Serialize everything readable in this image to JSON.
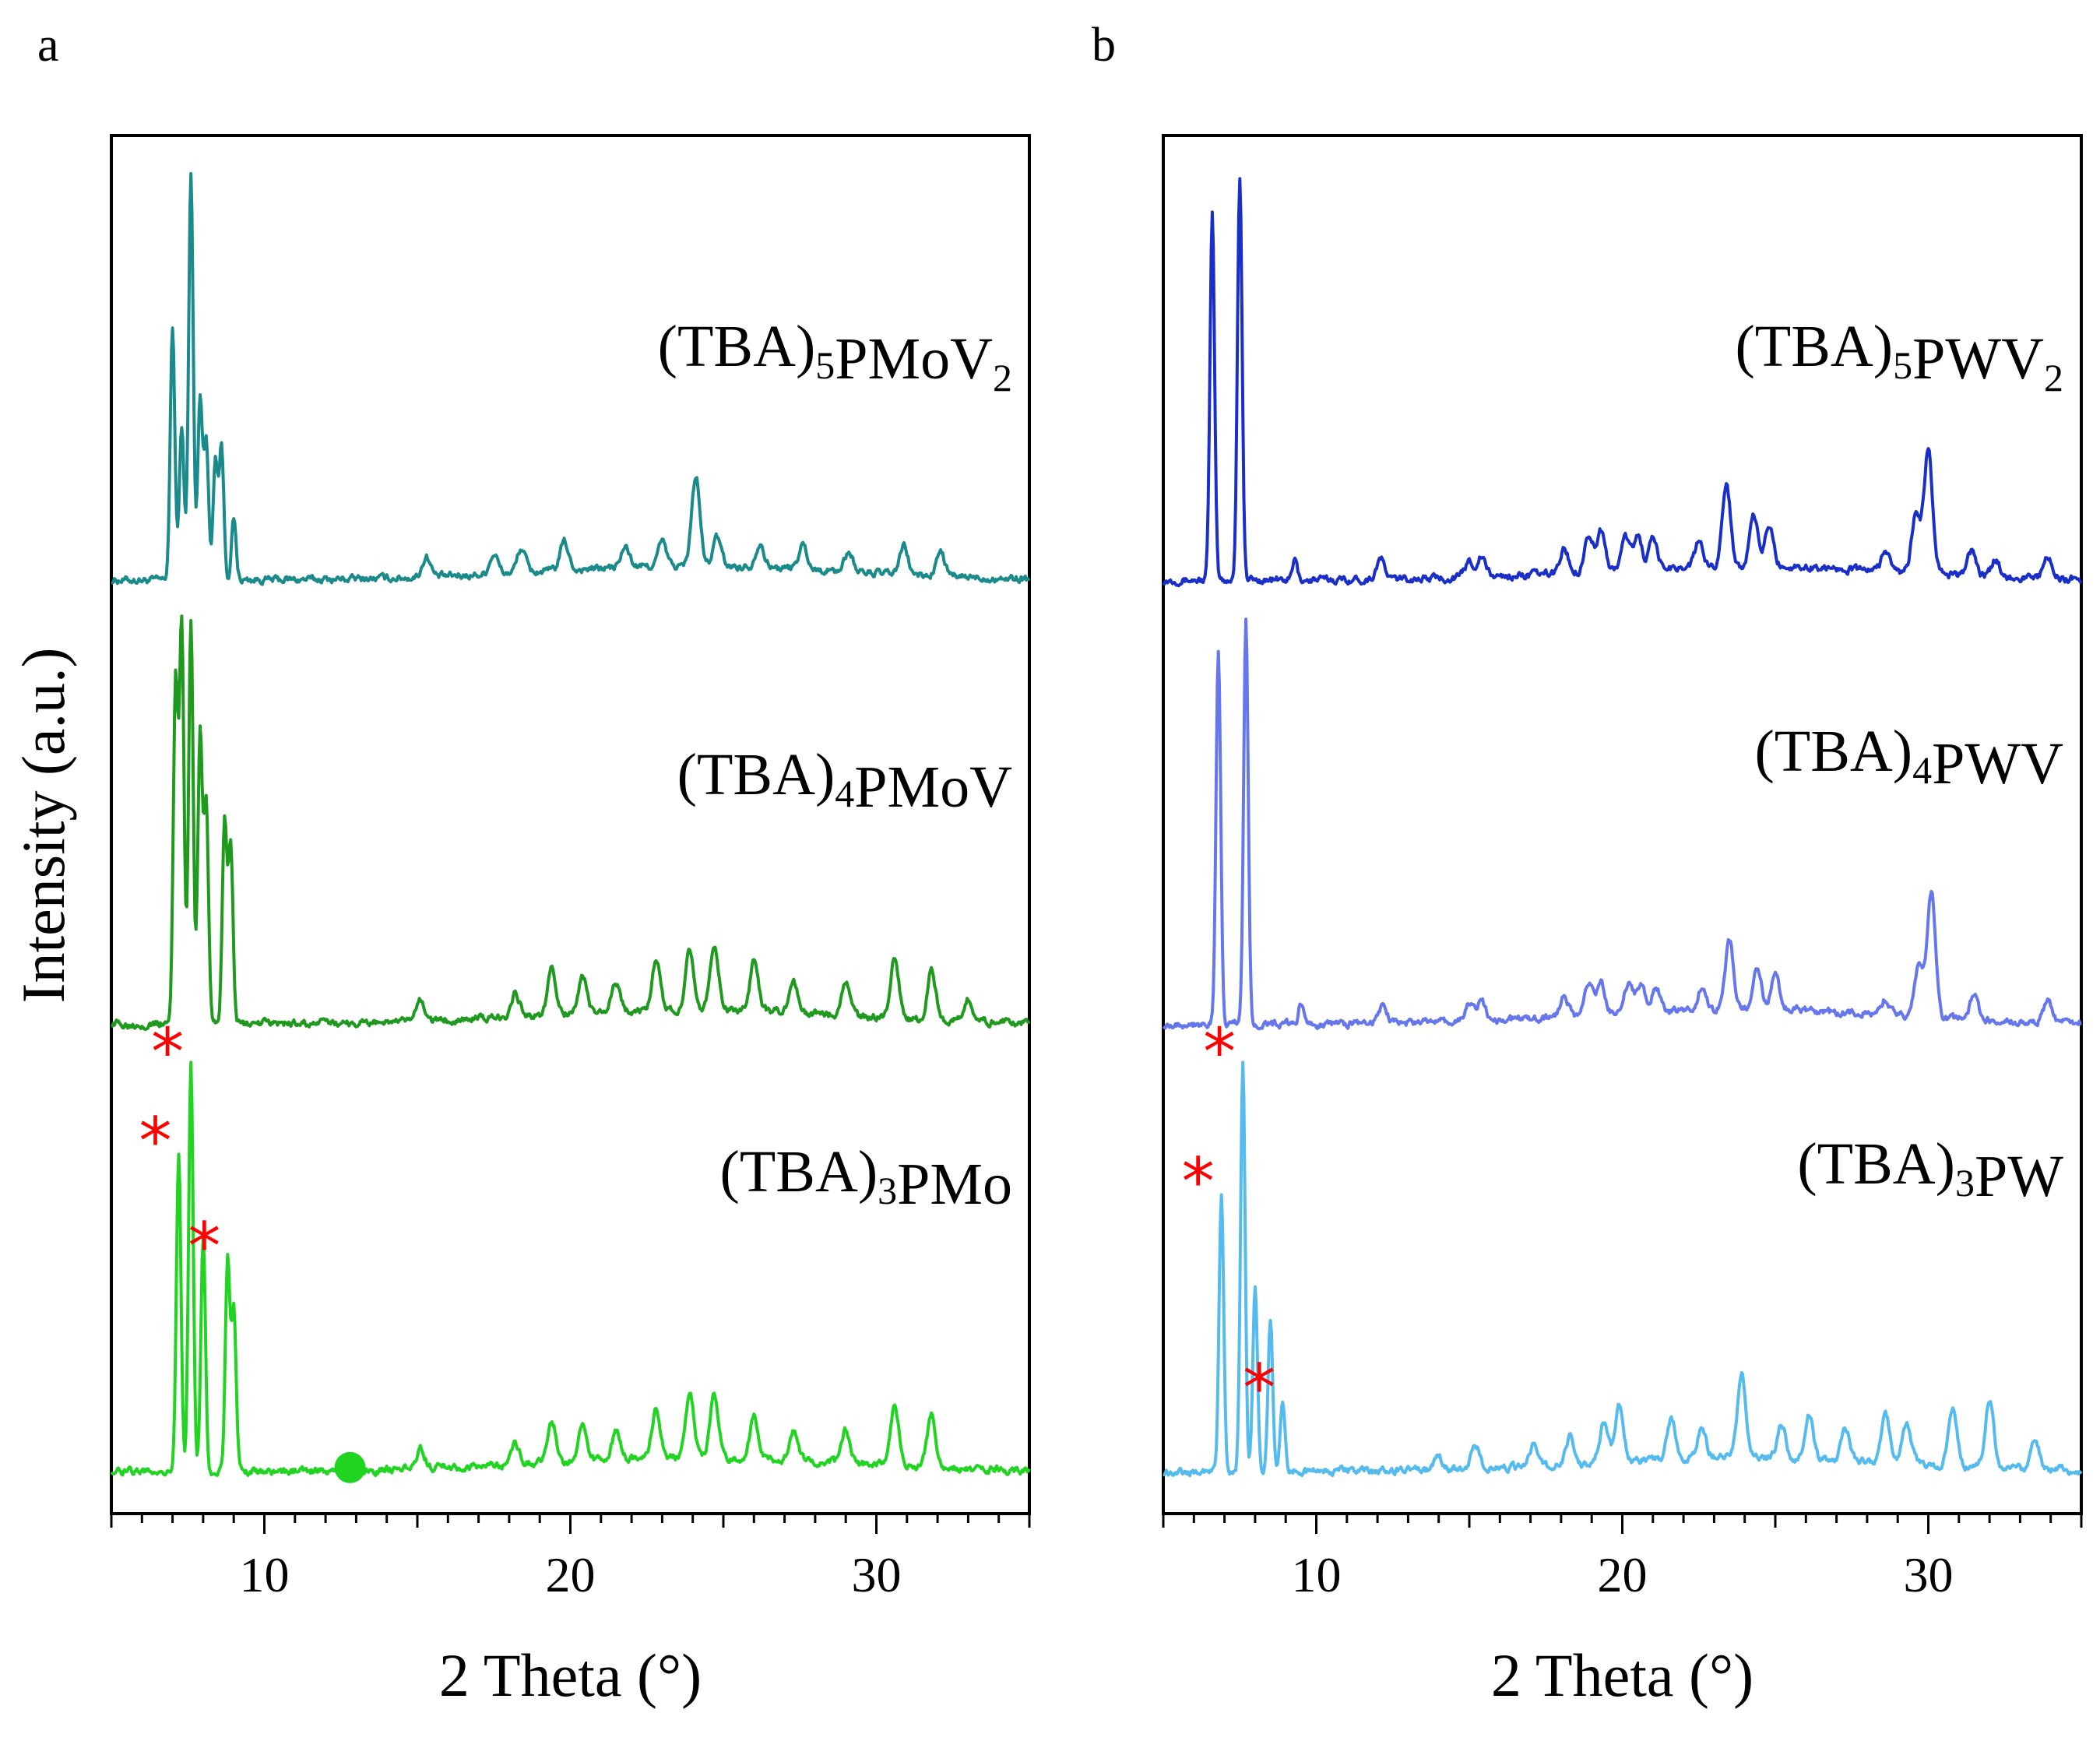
{
  "chart_data": [
    {
      "type": "line",
      "panel": "a",
      "xlabel": "2 Theta (°)",
      "ylabel": "Intensity (a.u.)",
      "xlim": [
        5,
        35
      ],
      "xticks": [
        10,
        20,
        30
      ],
      "xtick_labels": [
        "10",
        "20",
        "30"
      ],
      "series": [
        {
          "name": "(TBA)5PMoV2",
          "label_main": "(TBA)",
          "label_sub1": "5",
          "label_mid": "PMoV",
          "label_sub2": "2",
          "color": "#1a8a8a",
          "peaks": [
            [
              7.0,
              0.62
            ],
            [
              7.3,
              0.38
            ],
            [
              7.6,
              1.0
            ],
            [
              7.9,
              0.45
            ],
            [
              8.1,
              0.35
            ],
            [
              8.4,
              0.3
            ],
            [
              8.6,
              0.33
            ],
            [
              9.0,
              0.15
            ],
            [
              15.3,
              0.05
            ],
            [
              17.5,
              0.05
            ],
            [
              18.4,
              0.06
            ],
            [
              19.8,
              0.07
            ],
            [
              21.8,
              0.05
            ],
            [
              23.0,
              0.06
            ],
            [
              24.1,
              0.22
            ],
            [
              24.8,
              0.07
            ],
            [
              26.2,
              0.06
            ],
            [
              27.6,
              0.06
            ],
            [
              29.1,
              0.05
            ],
            [
              30.9,
              0.07
            ],
            [
              32.1,
              0.06
            ]
          ],
          "annotations": []
        },
        {
          "name": "(TBA)4PMoV",
          "label_main": "(TBA)",
          "label_sub1": "4",
          "label_mid": "PMoV",
          "label_sub2": "",
          "color": "#1f9a1f",
          "peaks": [
            [
              7.1,
              0.85
            ],
            [
              7.3,
              0.98
            ],
            [
              7.6,
              1.0
            ],
            [
              7.9,
              0.72
            ],
            [
              8.1,
              0.55
            ],
            [
              8.7,
              0.5
            ],
            [
              8.9,
              0.45
            ],
            [
              15.1,
              0.05
            ],
            [
              18.2,
              0.06
            ],
            [
              19.4,
              0.11
            ],
            [
              20.4,
              0.09
            ],
            [
              21.5,
              0.07
            ],
            [
              22.8,
              0.12
            ],
            [
              23.9,
              0.15
            ],
            [
              24.7,
              0.15
            ],
            [
              26.0,
              0.12
            ],
            [
              27.3,
              0.07
            ],
            [
              29.0,
              0.09
            ],
            [
              30.6,
              0.15
            ],
            [
              31.8,
              0.12
            ],
            [
              33.0,
              0.06
            ]
          ],
          "annotations": []
        },
        {
          "name": "(TBA)3PMo",
          "label_main": "(TBA)",
          "label_sub1": "3",
          "label_mid": "PMo",
          "label_sub2": "",
          "color": "#22d422",
          "peaks": [
            [
              7.2,
              0.78
            ],
            [
              7.6,
              1.0
            ],
            [
              8.0,
              0.58
            ],
            [
              8.8,
              0.52
            ],
            [
              9.0,
              0.4
            ],
            [
              15.1,
              0.05
            ],
            [
              18.2,
              0.05
            ],
            [
              19.4,
              0.1
            ],
            [
              20.4,
              0.08
            ],
            [
              21.5,
              0.07
            ],
            [
              22.8,
              0.12
            ],
            [
              23.9,
              0.16
            ],
            [
              24.7,
              0.16
            ],
            [
              26.0,
              0.11
            ],
            [
              27.3,
              0.07
            ],
            [
              29.0,
              0.08
            ],
            [
              30.6,
              0.14
            ],
            [
              31.8,
              0.13
            ]
          ],
          "annotations": [
            {
              "x": 7.2,
              "text": "*"
            },
            {
              "x": 7.6,
              "text": "*"
            },
            {
              "x": 8.8,
              "text": "*"
            }
          ],
          "marker_x": 12.8
        }
      ]
    },
    {
      "type": "line",
      "panel": "b",
      "xlabel": "2 Theta (°)",
      "xlim": [
        5,
        35
      ],
      "xticks": [
        10,
        20,
        30
      ],
      "xtick_labels": [
        "10",
        "20",
        "30"
      ],
      "series": [
        {
          "name": "(TBA)5PWV2",
          "label_main": "(TBA)",
          "label_sub1": "5",
          "label_mid": "PWV",
          "label_sub2": "2",
          "color": "#1a2ec8",
          "peaks": [
            [
              6.6,
              0.9
            ],
            [
              7.5,
              1.0
            ],
            [
              9.3,
              0.05
            ],
            [
              12.1,
              0.05
            ],
            [
              15.0,
              0.04
            ],
            [
              15.4,
              0.05
            ],
            [
              18.1,
              0.06
            ],
            [
              18.9,
              0.09
            ],
            [
              19.3,
              0.1
            ],
            [
              20.1,
              0.08
            ],
            [
              20.5,
              0.08
            ],
            [
              21.0,
              0.07
            ],
            [
              22.5,
              0.06
            ],
            [
              23.4,
              0.2
            ],
            [
              24.3,
              0.12
            ],
            [
              24.8,
              0.1
            ],
            [
              28.6,
              0.05
            ],
            [
              29.6,
              0.15
            ],
            [
              30.0,
              0.31
            ],
            [
              31.4,
              0.06
            ],
            [
              32.2,
              0.04
            ],
            [
              33.9,
              0.05
            ]
          ],
          "annotations": []
        },
        {
          "name": "(TBA)4PWV",
          "label_main": "(TBA)",
          "label_sub1": "4",
          "label_mid": "PWV",
          "label_sub2": "",
          "color": "#6677ee",
          "peaks": [
            [
              6.8,
              0.92
            ],
            [
              7.7,
              1.0
            ],
            [
              9.5,
              0.05
            ],
            [
              12.2,
              0.04
            ],
            [
              15.0,
              0.04
            ],
            [
              15.4,
              0.05
            ],
            [
              18.1,
              0.05
            ],
            [
              18.9,
              0.08
            ],
            [
              19.3,
              0.08
            ],
            [
              20.2,
              0.07
            ],
            [
              20.6,
              0.07
            ],
            [
              21.1,
              0.06
            ],
            [
              22.6,
              0.06
            ],
            [
              23.5,
              0.17
            ],
            [
              24.4,
              0.11
            ],
            [
              25.0,
              0.09
            ],
            [
              28.6,
              0.04
            ],
            [
              29.7,
              0.13
            ],
            [
              30.1,
              0.31
            ],
            [
              31.5,
              0.06
            ],
            [
              33.9,
              0.05
            ]
          ],
          "annotations": []
        },
        {
          "name": "(TBA)3PW",
          "label_main": "(TBA)",
          "label_sub1": "3",
          "label_mid": "PW",
          "label_sub2": "",
          "color": "#55bbee",
          "peaks": [
            [
              6.9,
              0.68
            ],
            [
              7.6,
              1.0
            ],
            [
              8.0,
              0.45
            ],
            [
              8.5,
              0.38
            ],
            [
              8.9,
              0.17
            ],
            [
              14.0,
              0.03
            ],
            [
              15.2,
              0.06
            ],
            [
              17.1,
              0.05
            ],
            [
              18.3,
              0.07
            ],
            [
              19.4,
              0.1
            ],
            [
              19.9,
              0.14
            ],
            [
              21.6,
              0.1
            ],
            [
              22.6,
              0.08
            ],
            [
              23.9,
              0.21
            ],
            [
              25.2,
              0.08
            ],
            [
              26.1,
              0.11
            ],
            [
              27.3,
              0.08
            ],
            [
              28.6,
              0.12
            ],
            [
              29.3,
              0.1
            ],
            [
              30.8,
              0.15
            ],
            [
              32.0,
              0.17
            ],
            [
              33.5,
              0.07
            ]
          ],
          "annotations": [
            {
              "x": 6.9,
              "text": "*"
            },
            {
              "x": 7.6,
              "text": "*"
            },
            {
              "x": 8.9,
              "text": "*"
            }
          ]
        }
      ]
    }
  ]
}
